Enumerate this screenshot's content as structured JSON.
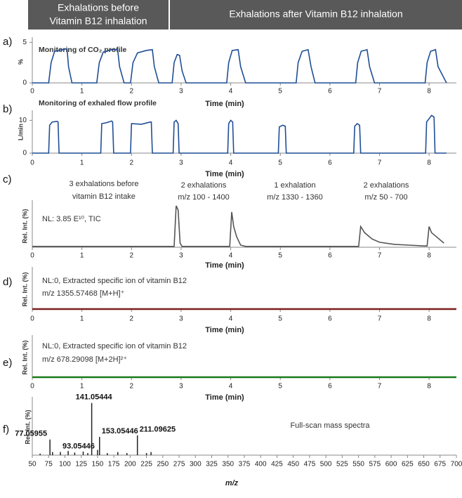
{
  "header": {
    "before": [
      "Exhalations before",
      "Vitamin B12 inhalation"
    ],
    "after": "Exhalations after Vitamin B12 inhalation"
  },
  "chart_data": [
    {
      "type": "line",
      "label": "a)",
      "title": "Monitoring of CO₂ profile",
      "y_label": "%",
      "x_label": "Time (min)",
      "color": "#1f4e96",
      "x": [
        0,
        0.33,
        0.38,
        0.45,
        0.6,
        0.7,
        0.73,
        0.8,
        1.3,
        1.35,
        1.43,
        1.6,
        1.72,
        1.76,
        1.85,
        1.98,
        2.03,
        2.12,
        2.3,
        2.42,
        2.46,
        2.55,
        2.82,
        2.86,
        2.92,
        2.97,
        3.02,
        3.1,
        3.92,
        3.96,
        4.03,
        4.15,
        4.2,
        4.3,
        5.32,
        5.36,
        5.44,
        5.56,
        5.62,
        5.7,
        6.52,
        6.56,
        6.63,
        6.75,
        6.8,
        6.9,
        7.92,
        7.96,
        8.03,
        8.13,
        8.18,
        8.35
      ],
      "values": [
        0,
        0,
        2.5,
        3.9,
        4.1,
        4.2,
        2,
        0,
        0,
        2.5,
        3.8,
        4.1,
        4.1,
        2,
        0,
        0,
        2.5,
        3.7,
        4.0,
        4.1,
        2,
        0,
        0,
        2.5,
        3.5,
        3.4,
        1.5,
        0,
        0,
        2.5,
        4.0,
        4.1,
        2,
        0,
        0,
        2.5,
        3.9,
        4.1,
        2,
        0,
        0,
        2.5,
        3.9,
        4.1,
        2,
        0,
        0,
        2.5,
        3.9,
        4.1,
        2,
        0
      ],
      "xlim": [
        0,
        8.55
      ],
      "xticks": [
        0,
        1,
        2,
        3,
        4,
        5,
        6,
        7,
        8
      ],
      "ylim": [
        0,
        5.2
      ],
      "yticks": [
        0,
        5
      ]
    },
    {
      "type": "line",
      "label": "b)",
      "title": "Monitoring of exhaled flow profile",
      "y_label": "L/min",
      "x_label": "Time (min)",
      "color": "#1f4e96",
      "x": [
        0,
        0.33,
        0.35,
        0.4,
        0.5,
        0.52,
        0.54,
        1.38,
        1.4,
        1.5,
        1.6,
        1.62,
        1.64,
        1.98,
        2.0,
        2.2,
        2.38,
        2.4,
        2.42,
        2.84,
        2.86,
        2.9,
        2.94,
        2.96,
        3.94,
        3.96,
        4.0,
        4.04,
        4.06,
        4.96,
        4.98,
        5.05,
        5.1,
        5.12,
        6.48,
        6.5,
        6.55,
        6.6,
        6.62,
        7.93,
        7.95,
        8.05,
        8.1,
        8.12,
        8.35
      ],
      "values": [
        0,
        0,
        8.5,
        9.5,
        9.7,
        9.5,
        0,
        0,
        9,
        9.3,
        9.8,
        9.5,
        0,
        0,
        9,
        8.8,
        9.5,
        9.5,
        0,
        0,
        9.5,
        10,
        9,
        0,
        0,
        9,
        10,
        9.5,
        0,
        0,
        8,
        8.5,
        8.2,
        0,
        0,
        8.2,
        9,
        8.5,
        0,
        0,
        9.5,
        11.5,
        11,
        0,
        0
      ],
      "xlim": [
        0,
        8.55
      ],
      "xticks": [
        0,
        1,
        2,
        3,
        4,
        5,
        6,
        7,
        8
      ],
      "ylim": [
        0,
        12
      ],
      "yticks": [
        0,
        10
      ]
    },
    {
      "type": "line",
      "label": "c)",
      "y_label": "Rel. Int. (%)",
      "x_label": "Time (min)",
      "color": "#555555",
      "annotations": [
        "3 exhalations before",
        "vitamin B12 intake",
        "2 exhalations",
        "m/z 100 - 1400",
        "1 exhalation",
        "m/z 1330 - 1360",
        "2 exhalations",
        "m/z 50 - 700",
        "NL: 3.85 E¹⁰, TIC"
      ],
      "x": [
        0,
        2.86,
        2.9,
        2.94,
        2.98,
        3.02,
        3.98,
        4.02,
        4.06,
        4.12,
        4.2,
        4.3,
        6.58,
        6.62,
        6.7,
        6.85,
        7.0,
        7.3,
        7.6,
        7.9,
        7.96,
        8.0,
        8.05,
        8.15,
        8.3
      ],
      "values": [
        0.02,
        0.02,
        1.0,
        0.9,
        0.1,
        0.02,
        0.02,
        0.85,
        0.5,
        0.25,
        0.05,
        0.02,
        0.02,
        0.5,
        0.35,
        0.2,
        0.12,
        0.07,
        0.05,
        0.03,
        0.03,
        0.5,
        0.35,
        0.25,
        0.1
      ],
      "xlim": [
        0,
        8.55
      ],
      "xticks": [
        0,
        1,
        2,
        3,
        4,
        5,
        6,
        7,
        8
      ],
      "ylim": [
        0,
        1.05
      ]
    },
    {
      "type": "line",
      "label": "d)",
      "y_label": "Rel. Int. (%)",
      "x_label": "Time (min)",
      "color": "#7a1f1f",
      "annotations": [
        "NL:0, Extracted specific ion of vitamin B12",
        "m/z 1355.57468 [M+H]⁺"
      ],
      "x": [
        0,
        8.55
      ],
      "values": [
        0,
        0
      ],
      "xlim": [
        0,
        8.55
      ],
      "xticks": [
        0,
        1,
        2,
        3,
        4,
        5,
        6,
        7,
        8
      ],
      "ylim": [
        0,
        1
      ]
    },
    {
      "type": "line",
      "label": "e)",
      "y_label": "Rel. Int. (%)",
      "x_label": "Time (min)",
      "color": "#1a7a1a",
      "annotations": [
        "NL:0, Extracted specific ion of vitamin B12",
        "m/z 678.29098 [M+2H]²⁺"
      ],
      "x": [
        0,
        8.55
      ],
      "values": [
        0,
        0
      ],
      "xlim": [
        0,
        8.55
      ],
      "xticks": [
        0,
        1,
        2,
        3,
        4,
        5,
        6,
        7,
        8
      ],
      "ylim": [
        0,
        1
      ]
    },
    {
      "type": "bar",
      "label": "f)",
      "y_label": "Rel. Int. (%)",
      "x_label": "m/z",
      "color": "#222222",
      "annotations": [
        "Full-scan mass spectra"
      ],
      "x": [
        62,
        77.05955,
        81,
        93.05446,
        105,
        115,
        128,
        135,
        141.05444,
        150,
        153.05446,
        165,
        181,
        195,
        211.09625,
        225,
        232
      ],
      "values": [
        0.03,
        0.3,
        0.06,
        0.06,
        0.08,
        0.05,
        0.07,
        0.04,
        1.0,
        0.1,
        0.35,
        0.04,
        0.06,
        0.04,
        0.38,
        0.04,
        0.06
      ],
      "peak_labels": [
        null,
        "77.05955",
        null,
        "93.05446",
        null,
        null,
        null,
        null,
        "141.05444",
        null,
        "153.05446",
        null,
        null,
        null,
        "211.09625",
        null,
        null
      ],
      "xlim": [
        50,
        700
      ],
      "xticks": [
        50,
        75,
        100,
        125,
        150,
        175,
        200,
        225,
        250,
        275,
        300,
        325,
        350,
        375,
        400,
        425,
        450,
        475,
        500,
        525,
        550,
        575,
        600,
        625,
        650,
        675,
        700
      ],
      "ylim": [
        0,
        1.05
      ]
    }
  ]
}
